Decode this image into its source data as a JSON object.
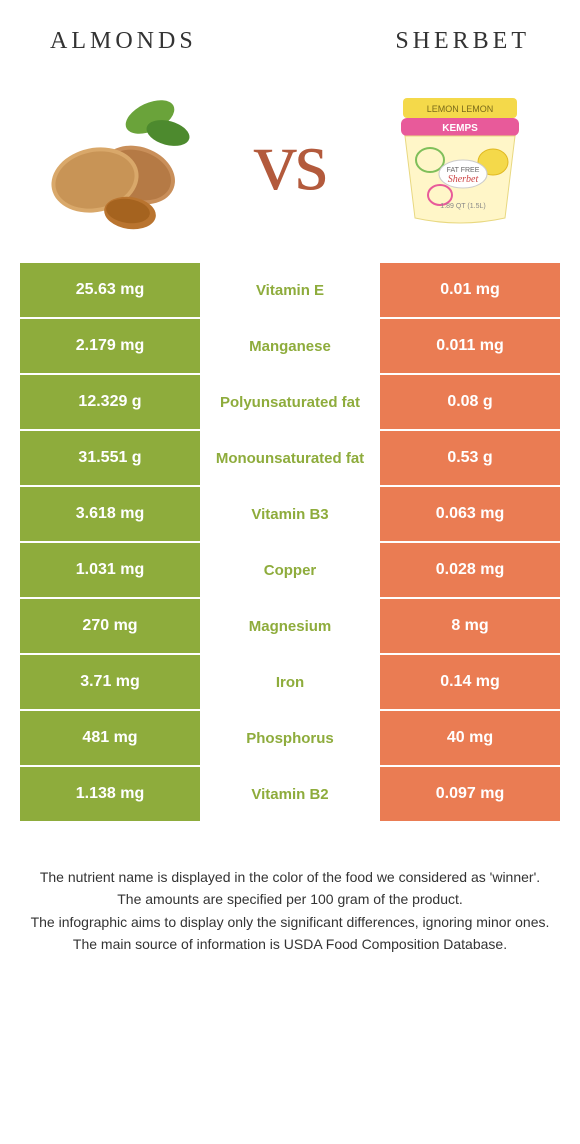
{
  "header": {
    "left_title": "Almonds",
    "right_title": "Sherbet"
  },
  "vs_label": "vs",
  "colors": {
    "left_bg": "#8eac3c",
    "right_bg": "#ea7c53",
    "cell_text": "#ffffff",
    "page_bg": "#ffffff"
  },
  "nutrients": [
    {
      "name": "Vitamin E",
      "left": "25.63 mg",
      "right": "0.01 mg",
      "winner": "left"
    },
    {
      "name": "Manganese",
      "left": "2.179 mg",
      "right": "0.011 mg",
      "winner": "left"
    },
    {
      "name": "Polyunsaturated fat",
      "left": "12.329 g",
      "right": "0.08 g",
      "winner": "left"
    },
    {
      "name": "Monounsaturated fat",
      "left": "31.551 g",
      "right": "0.53 g",
      "winner": "left"
    },
    {
      "name": "Vitamin B3",
      "left": "3.618 mg",
      "right": "0.063 mg",
      "winner": "left"
    },
    {
      "name": "Copper",
      "left": "1.031 mg",
      "right": "0.028 mg",
      "winner": "left"
    },
    {
      "name": "Magnesium",
      "left": "270 mg",
      "right": "8 mg",
      "winner": "left"
    },
    {
      "name": "Iron",
      "left": "3.71 mg",
      "right": "0.14 mg",
      "winner": "left"
    },
    {
      "name": "Phosphorus",
      "left": "481 mg",
      "right": "40 mg",
      "winner": "left"
    },
    {
      "name": "Vitamin B2",
      "left": "1.138 mg",
      "right": "0.097 mg",
      "winner": "left"
    }
  ],
  "footer": {
    "line1": "The nutrient name is displayed in the color of the food we considered as 'winner'.",
    "line2": "The amounts are specified per 100 gram of the product.",
    "line3": "The infographic aims to display only the significant differences, ignoring minor ones.",
    "line4": "The main source of information is USDA Food Composition Database."
  }
}
